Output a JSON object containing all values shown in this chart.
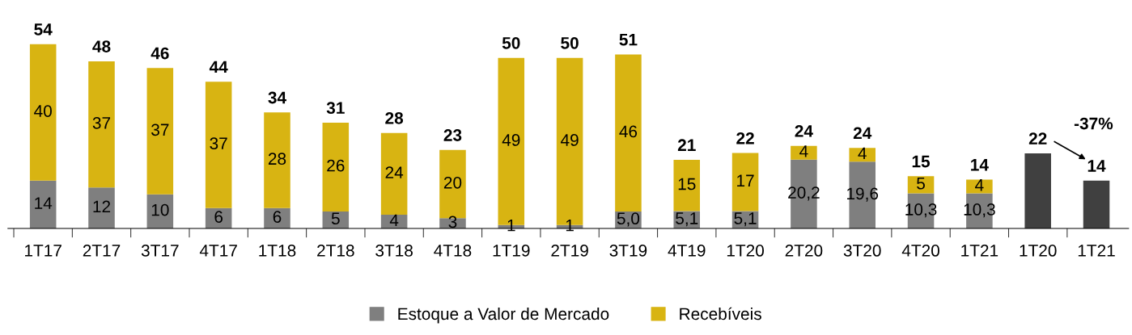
{
  "chart_data": {
    "type": "bar",
    "stacked": true,
    "categories": [
      "1T17",
      "2T17",
      "3T17",
      "4T17",
      "1T18",
      "2T18",
      "3T18",
      "4T18",
      "1T19",
      "2T19",
      "3T19",
      "4T19",
      "1T20",
      "2T20",
      "3T20",
      "4T20",
      "1T21",
      "1T20",
      "1T21"
    ],
    "series": [
      {
        "name": "Estoque a Valor de Mercado",
        "color": "#7f7f7f",
        "values": [
          14,
          12,
          10,
          6,
          6,
          5,
          4,
          3,
          1,
          1,
          5.0,
          5.1,
          5.1,
          20.2,
          19.6,
          10.3,
          10.3,
          null,
          null
        ],
        "value_labels": [
          "14",
          "12",
          "10",
          "6",
          "6",
          "5",
          "4",
          "3",
          "1",
          "1",
          "5,0",
          "5,1",
          "5,1",
          "20,2",
          "19,6",
          "10,3",
          "10,3",
          null,
          null
        ]
      },
      {
        "name": "Recebíveis",
        "color": "#d8b412",
        "values": [
          40,
          37,
          37,
          37,
          28,
          26,
          24,
          20,
          49,
          49,
          46,
          15,
          17,
          4,
          4,
          5,
          4,
          null,
          null
        ],
        "value_labels": [
          "40",
          "37",
          "37",
          "37",
          "28",
          "26",
          "24",
          "20",
          "49",
          "49",
          "46",
          "15",
          "17",
          "4",
          "4",
          "5",
          "4",
          null,
          null
        ]
      },
      {
        "color": "#404040",
        "values": [
          null,
          null,
          null,
          null,
          null,
          null,
          null,
          null,
          null,
          null,
          null,
          null,
          null,
          null,
          null,
          null,
          null,
          22,
          14
        ]
      }
    ],
    "totals": [
      "54",
      "48",
      "46",
      "44",
      "34",
      "31",
      "28",
      "23",
      "50",
      "50",
      "51",
      "21",
      "22",
      "24",
      "24",
      "15",
      "14",
      "22",
      "14"
    ],
    "annotations": [
      "-37%"
    ],
    "legend": "bottom",
    "grid": false
  }
}
